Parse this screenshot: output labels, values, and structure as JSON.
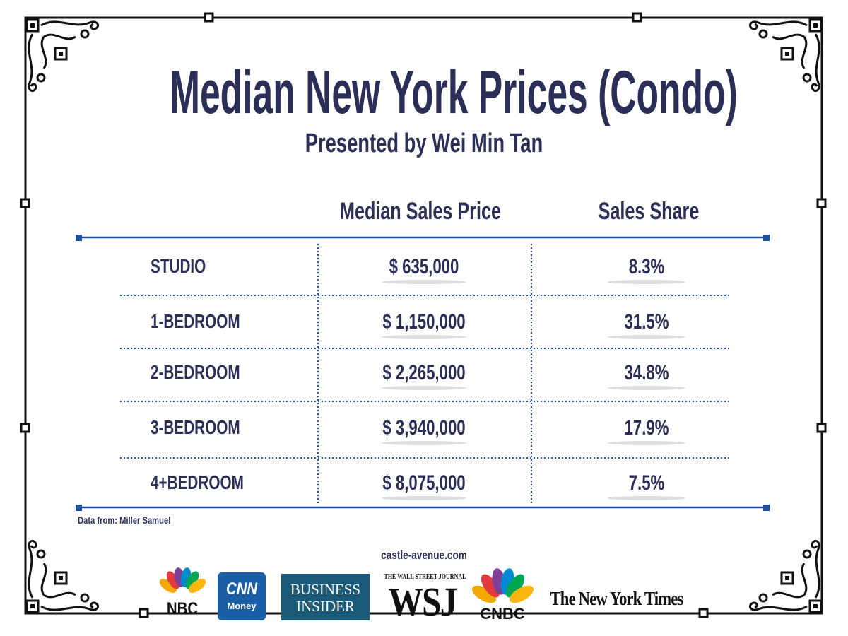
{
  "header": {
    "title": "Median New York Prices (Condo)",
    "subtitle": "Presented by Wei Min Tan"
  },
  "table": {
    "columns": [
      "Median Sales Price",
      "Sales Share"
    ],
    "rows": [
      [
        "STUDIO",
        "$ 635,000",
        "8.3%"
      ],
      [
        "1-BEDROOM",
        "$ 1,150,000",
        "31.5%"
      ],
      [
        "2-BEDROOM",
        "$ 2,265,000",
        "34.8%"
      ],
      [
        "3-BEDROOM",
        "$ 3,940,000",
        "17.9%"
      ],
      [
        "4+BEDROOM",
        "$ 8,075,000",
        "7.5%"
      ]
    ]
  },
  "footer": {
    "source": "Data from: Miller Samuel",
    "website": "castle-avenue.com",
    "logos": [
      "NBC",
      "CNN",
      "Money",
      "BUSINESS",
      "INSIDER",
      "THE WALL STREET JOURNAL",
      "WSJ",
      "CNBC",
      "The New York Times"
    ]
  }
}
